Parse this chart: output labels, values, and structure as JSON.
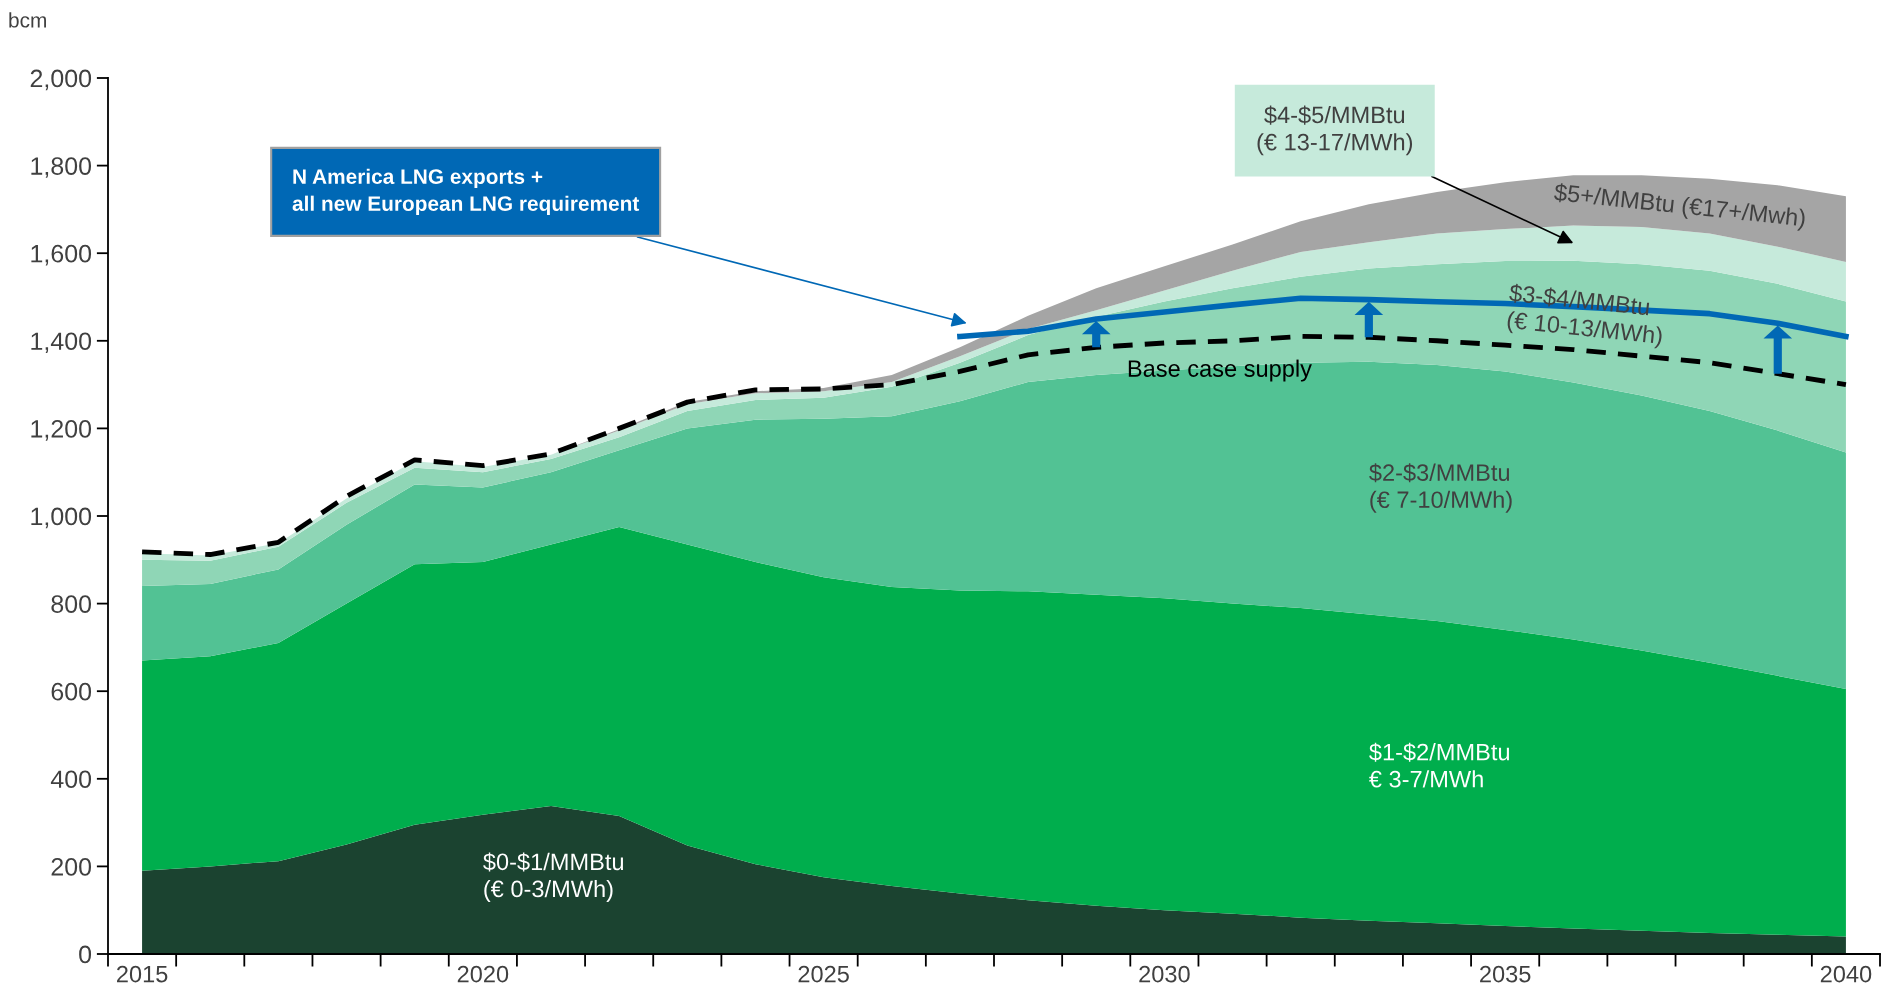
{
  "chart_data": {
    "type": "area",
    "stacked": true,
    "ylabel": "bcm",
    "categories": [
      "2015",
      null,
      null,
      null,
      null,
      "2020",
      null,
      null,
      null,
      null,
      "2025",
      null,
      null,
      null,
      null,
      "2030",
      null,
      null,
      null,
      null,
      "2035",
      null,
      null,
      null,
      null,
      "2040"
    ],
    "ylim": [
      0,
      2000
    ],
    "yticks": [
      {
        "value": 0,
        "label": "0"
      },
      {
        "value": 200,
        "label": "200"
      },
      {
        "value": 400,
        "label": "400"
      },
      {
        "value": 600,
        "label": "600"
      },
      {
        "value": 800,
        "label": "800"
      },
      {
        "value": 1000,
        "label": "1,000"
      },
      {
        "value": 1200,
        "label": "1,200"
      },
      {
        "value": 1400,
        "label": "1,400"
      },
      {
        "value": 1600,
        "label": "1,600"
      },
      {
        "value": 1800,
        "label": "1,800"
      },
      {
        "value": 2000,
        "label": "2,000"
      }
    ],
    "grid": false,
    "legend": false,
    "series": [
      {
        "name": "$0-$1/MMBtu\n(€ 0-3/MWh)",
        "color": "#1b4330",
        "values": [
          190,
          200,
          212,
          250,
          295,
          318,
          338,
          315,
          248,
          205,
          175,
          155,
          138,
          123,
          110,
          100,
          92,
          83,
          76,
          70,
          64,
          58,
          53,
          48,
          44,
          40
        ]
      },
      {
        "name": "$1-$2/MMBtu\n€ 3-7/MWh",
        "color": "#00ae4d",
        "values": [
          480,
          480,
          498,
          550,
          595,
          577,
          597,
          660,
          687,
          690,
          685,
          683,
          692,
          705,
          710,
          712,
          708,
          707,
          699,
          690,
          676,
          660,
          640,
          617,
          591,
          565
        ]
      },
      {
        "name": "$2-$3/MMBtu\n(€ 7-10/MWh)",
        "color": "#52c294",
        "values": [
          170,
          165,
          168,
          180,
          182,
          170,
          165,
          175,
          265,
          325,
          362,
          390,
          432,
          478,
          502,
          520,
          542,
          560,
          577,
          585,
          590,
          587,
          582,
          575,
          560,
          540
        ]
      },
      {
        "name": "$3-$4/MMBtu\n(€ 10-13/MWh)",
        "color": "#8fd6b6",
        "values": [
          60,
          53,
          52,
          50,
          38,
          35,
          30,
          30,
          40,
          45,
          48,
          67,
          88,
          107,
          133,
          158,
          178,
          196,
          213,
          230,
          252,
          278,
          300,
          320,
          335,
          345
        ]
      },
      {
        "name": "$4-$5/MMBtu\n(€ 13-17/MWh)",
        "color": "#c6eadb",
        "values": [
          15,
          12,
          8,
          10,
          15,
          12,
          10,
          15,
          15,
          15,
          15,
          11,
          15,
          14,
          15,
          25,
          40,
          57,
          60,
          70,
          73,
          80,
          85,
          85,
          85,
          90
        ]
      },
      {
        "name": "$5+/MMBtu (€17+/Mwh)",
        "color": "#a5a5a5",
        "values": [
          0,
          0,
          0,
          0,
          0,
          0,
          0,
          3,
          5,
          5,
          7,
          16,
          20,
          30,
          50,
          55,
          60,
          70,
          87,
          95,
          107,
          115,
          118,
          125,
          140,
          150
        ]
      },
      {
        "name": "Base case supply",
        "type": "line",
        "line_style": "dashed",
        "color": "#000000",
        "values": [
          918,
          912,
          940,
          1045,
          1128,
          1115,
          1142,
          1200,
          1260,
          1288,
          1290,
          1300,
          1330,
          1368,
          1385,
          1395,
          1400,
          1410,
          1408,
          1400,
          1390,
          1380,
          1365,
          1350,
          1325,
          1300
        ]
      },
      {
        "name": "N America LNG exports +\nall new European LNG requirement",
        "type": "line",
        "line_style": "solid",
        "color": "#0068b5",
        "values": [
          null,
          null,
          null,
          null,
          null,
          null,
          null,
          null,
          null,
          null,
          null,
          null,
          1410,
          1422,
          1450,
          1466,
          1482,
          1497,
          1494,
          1489,
          1485,
          1478,
          1470,
          1462,
          1440,
          1410
        ]
      }
    ]
  }
}
